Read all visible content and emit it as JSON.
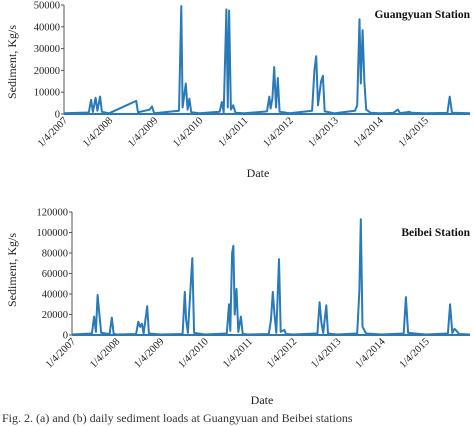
{
  "chart_data": [
    {
      "type": "line",
      "title": "Guangyuan Station",
      "xlabel": "Date",
      "ylabel": "Sediment, Kg/s",
      "ylim": [
        0,
        50000
      ],
      "yticks": [
        "0",
        "10000",
        "20000",
        "30000",
        "40000",
        "50000"
      ],
      "xticks": [
        "1/4/2007",
        "1/4/2008",
        "1/4/2009",
        "1/4/2010",
        "1/4/2011",
        "1/4/2012",
        "1/4/2013",
        "1/4/2014",
        "1/4/2015"
      ],
      "xrange_years": [
        2007.0,
        2016.0
      ],
      "grid": false,
      "color": "#2a7ab8",
      "series": [
        {
          "points": [
            [
              2007.0,
              300
            ],
            [
              2007.55,
              700
            ],
            [
              2007.6,
              6500
            ],
            [
              2007.64,
              900
            ],
            [
              2007.7,
              7500
            ],
            [
              2007.74,
              1500
            ],
            [
              2007.8,
              8000
            ],
            [
              2007.84,
              1000
            ],
            [
              2008.0,
              300
            ],
            [
              2008.6,
              6000
            ],
            [
              2008.64,
              800
            ],
            [
              2008.9,
              2000
            ],
            [
              2008.95,
              3500
            ],
            [
              2009.0,
              300
            ],
            [
              2009.55,
              1500
            ],
            [
              2009.6,
              49500
            ],
            [
              2009.63,
              3000
            ],
            [
              2009.7,
              14000
            ],
            [
              2009.74,
              2000
            ],
            [
              2009.78,
              7000
            ],
            [
              2009.82,
              800
            ],
            [
              2010.0,
              300
            ],
            [
              2010.45,
              1000
            ],
            [
              2010.5,
              5500
            ],
            [
              2010.54,
              800
            ],
            [
              2010.6,
              48000
            ],
            [
              2010.63,
              3000
            ],
            [
              2010.66,
              47500
            ],
            [
              2010.7,
              2000
            ],
            [
              2010.75,
              4000
            ],
            [
              2010.8,
              600
            ],
            [
              2011.0,
              300
            ],
            [
              2011.5,
              1200
            ],
            [
              2011.55,
              8000
            ],
            [
              2011.58,
              2500
            ],
            [
              2011.62,
              7000
            ],
            [
              2011.66,
              21500
            ],
            [
              2011.7,
              3000
            ],
            [
              2011.74,
              16500
            ],
            [
              2011.78,
              1000
            ],
            [
              2012.0,
              300
            ],
            [
              2012.5,
              1500
            ],
            [
              2012.55,
              20000
            ],
            [
              2012.59,
              26500
            ],
            [
              2012.63,
              4000
            ],
            [
              2012.7,
              15000
            ],
            [
              2012.74,
              17500
            ],
            [
              2012.78,
              1200
            ],
            [
              2013.0,
              300
            ],
            [
              2013.45,
              1500
            ],
            [
              2013.5,
              4000
            ],
            [
              2013.55,
              43500
            ],
            [
              2013.58,
              14000
            ],
            [
              2013.62,
              38500
            ],
            [
              2013.66,
              14500
            ],
            [
              2013.7,
              2000
            ],
            [
              2013.8,
              500
            ],
            [
              2014.0,
              300
            ],
            [
              2014.3,
              500
            ],
            [
              2014.4,
              2000
            ],
            [
              2014.45,
              400
            ],
            [
              2014.6,
              800
            ],
            [
              2014.65,
              1000
            ],
            [
              2014.7,
              600
            ],
            [
              2015.0,
              300
            ],
            [
              2015.5,
              500
            ],
            [
              2015.55,
              8000
            ],
            [
              2015.6,
              600
            ],
            [
              2016.0,
              300
            ]
          ]
        }
      ]
    },
    {
      "type": "line",
      "title": "Beibei Station",
      "xlabel": "Date",
      "ylabel": "Sediment, Kg/s",
      "ylim": [
        0,
        120000
      ],
      "yticks": [
        "0",
        "20000",
        "40000",
        "60000",
        "80000",
        "100000",
        "120000"
      ],
      "xticks": [
        "1/4/2007",
        "1/4/2008",
        "1/4/2009",
        "1/4/2010",
        "1/4/2011",
        "1/4/2012",
        "1/4/2013",
        "1/4/2014",
        "1/4/2015"
      ],
      "xrange_years": [
        2007.0,
        2016.0
      ],
      "grid": false,
      "color": "#2a7ab8",
      "series": [
        {
          "points": [
            [
              2007.0,
              500
            ],
            [
              2007.45,
              1500
            ],
            [
              2007.5,
              18000
            ],
            [
              2007.54,
              3000
            ],
            [
              2007.58,
              39000
            ],
            [
              2007.62,
              20000
            ],
            [
              2007.66,
              2000
            ],
            [
              2007.85,
              1000
            ],
            [
              2007.9,
              17000
            ],
            [
              2007.94,
              1500
            ],
            [
              2008.0,
              500
            ],
            [
              2008.45,
              1000
            ],
            [
              2008.5,
              13000
            ],
            [
              2008.54,
              8000
            ],
            [
              2008.58,
              11000
            ],
            [
              2008.62,
              1500
            ],
            [
              2008.7,
              28000
            ],
            [
              2008.74,
              1500
            ],
            [
              2009.0,
              500
            ],
            [
              2009.5,
              1000
            ],
            [
              2009.55,
              42000
            ],
            [
              2009.58,
              15000
            ],
            [
              2009.62,
              2000
            ],
            [
              2009.72,
              75000
            ],
            [
              2009.76,
              2000
            ],
            [
              2010.0,
              500
            ],
            [
              2010.5,
              1500
            ],
            [
              2010.55,
              30000
            ],
            [
              2010.58,
              4000
            ],
            [
              2010.62,
              80000
            ],
            [
              2010.65,
              87000
            ],
            [
              2010.68,
              20000
            ],
            [
              2010.72,
              45000
            ],
            [
              2010.76,
              3000
            ],
            [
              2010.82,
              18000
            ],
            [
              2010.86,
              1000
            ],
            [
              2011.0,
              500
            ],
            [
              2011.45,
              1000
            ],
            [
              2011.5,
              15000
            ],
            [
              2011.54,
              42000
            ],
            [
              2011.58,
              20000
            ],
            [
              2011.62,
              2000
            ],
            [
              2011.68,
              74000
            ],
            [
              2011.72,
              3000
            ],
            [
              2011.8,
              5000
            ],
            [
              2011.84,
              1000
            ],
            [
              2012.0,
              500
            ],
            [
              2012.55,
              1500
            ],
            [
              2012.6,
              32000
            ],
            [
              2012.64,
              12000
            ],
            [
              2012.68,
              2000
            ],
            [
              2012.75,
              29000
            ],
            [
              2012.79,
              1500
            ],
            [
              2013.0,
              500
            ],
            [
              2013.45,
              1500
            ],
            [
              2013.5,
              44000
            ],
            [
              2013.53,
              113000
            ],
            [
              2013.57,
              8000
            ],
            [
              2013.65,
              1500
            ],
            [
              2014.0,
              500
            ],
            [
              2014.5,
              1500
            ],
            [
              2014.55,
              37000
            ],
            [
              2014.6,
              2000
            ],
            [
              2015.0,
              500
            ],
            [
              2015.5,
              1500
            ],
            [
              2015.55,
              30000
            ],
            [
              2015.6,
              2000
            ],
            [
              2015.65,
              6000
            ],
            [
              2015.7,
              4000
            ],
            [
              2015.75,
              1000
            ],
            [
              2016.0,
              500
            ]
          ]
        }
      ]
    }
  ],
  "caption": "Fig. 2. (a) and (b) daily sediment loads at Guangyuan and Beibei stations"
}
